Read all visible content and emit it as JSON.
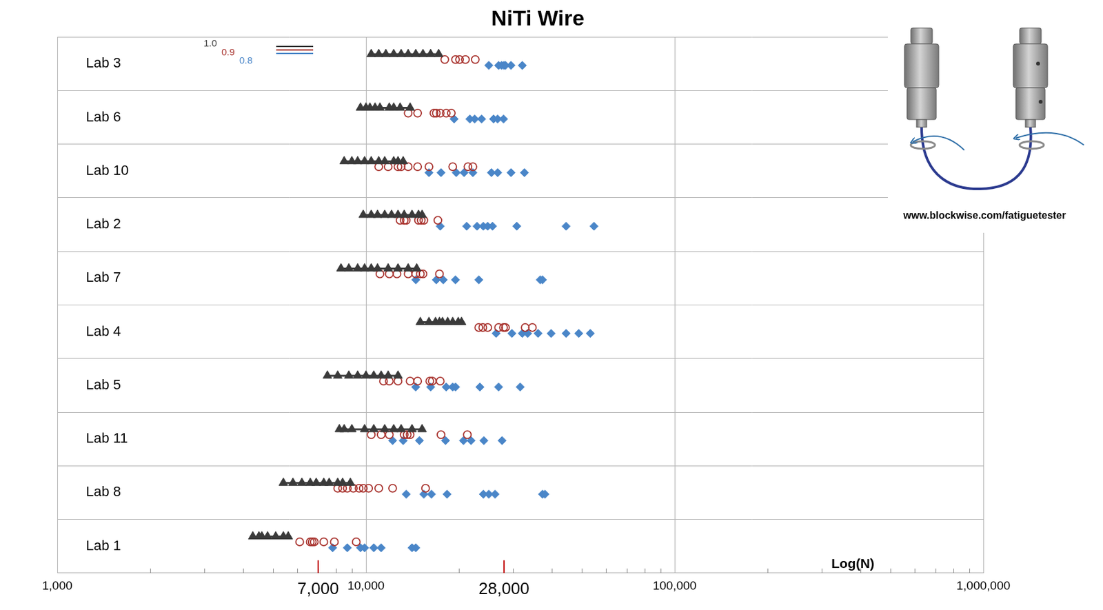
{
  "chart_data": {
    "type": "scatter",
    "title": "NiTi Wire",
    "xlabel": "Log(N)",
    "orientation": "horizontal",
    "log": "x",
    "grid": true,
    "legend": "upper left",
    "categories": [
      "Lab 3",
      "Lab 6",
      "Lab 10",
      "Lab 2",
      "Lab 7",
      "Lab 4",
      "Lab 5",
      "Lab 11",
      "Lab 8",
      "Lab 1"
    ],
    "xlim": [
      1000,
      1000000
    ],
    "xticks": [
      {
        "value": 1000,
        "label": "1,000"
      },
      {
        "value": 7000,
        "label": "7,000"
      },
      {
        "value": 10000,
        "label": "10,000"
      },
      {
        "value": 28000,
        "label": "28,000"
      },
      {
        "value": 100000,
        "label": "100,000"
      },
      {
        "value": 1000000,
        "label": "1,000,000"
      }
    ],
    "series": [
      {
        "name": "1.0",
        "color": "#3a3a3a",
        "marker": "triangle",
        "line_style": "solid",
        "values": [
          [
            10400,
            11000,
            11600,
            12300,
            13000,
            13700,
            14500,
            15300,
            16200,
            17200
          ],
          [
            9600,
            10000,
            10300,
            10700,
            11100,
            11900,
            12300,
            12900,
            13900
          ],
          [
            8500,
            9000,
            9400,
            9900,
            10400,
            11000,
            11500,
            12300,
            12700,
            13200
          ],
          [
            9800,
            10400,
            10900,
            11500,
            12100,
            12700,
            13300,
            14100,
            14800,
            15200
          ],
          [
            8300,
            8800,
            9400,
            9900,
            10400,
            10900,
            11800,
            12700,
            13700,
            14600
          ],
          [
            15000,
            16000,
            16800,
            17300,
            17700,
            18400,
            19100,
            19900,
            20400
          ],
          [
            7500,
            8100,
            8800,
            9400,
            10000,
            10600,
            11200,
            11800,
            12700
          ],
          [
            8200,
            8500,
            9000,
            9900,
            10600,
            11500,
            12300,
            13000,
            14100,
            15200
          ],
          [
            5400,
            5800,
            6200,
            6600,
            6900,
            7300,
            7600,
            8100,
            8400,
            8900
          ],
          [
            4300,
            4500,
            4600,
            4800,
            5100,
            5400,
            5600
          ]
        ]
      },
      {
        "name": "0.9",
        "color": "#a8322d",
        "marker": "open_circle",
        "line_style": "none",
        "values": [
          [
            18000,
            19500,
            20100,
            21000,
            22600
          ],
          [
            13700,
            14700,
            16600,
            16900,
            17400,
            18200,
            18900
          ],
          [
            11000,
            11800,
            12700,
            13000,
            13700,
            14700,
            16000,
            19100,
            21400,
            22200
          ],
          [
            12900,
            13300,
            13500,
            14800,
            15100,
            15400,
            17100
          ],
          [
            11100,
            11900,
            12600,
            13700,
            14500,
            15000,
            15300,
            17300
          ],
          [
            23200,
            23900,
            24800,
            26900,
            27900,
            28300,
            32800,
            34600
          ],
          [
            11400,
            11900,
            12700,
            13900,
            14700,
            16100,
            16400,
            17400
          ],
          [
            10400,
            11200,
            11900,
            13300,
            13600,
            13900,
            17500,
            21300
          ],
          [
            8100,
            8400,
            8700,
            9100,
            9500,
            9800,
            10200,
            11000,
            12200,
            15600
          ],
          [
            6100,
            6600,
            6700,
            6800,
            7300,
            7900,
            9300
          ]
        ]
      },
      {
        "name": "0.8",
        "color": "#4a86c8",
        "marker": "diamond",
        "line_style": "none",
        "values": [
          [
            25000,
            26900,
            27500,
            28000,
            28300,
            29500,
            32100
          ],
          [
            19300,
            21700,
            22500,
            23700,
            25900,
            26700,
            27900
          ],
          [
            16000,
            17500,
            19600,
            20800,
            22200,
            25500,
            26700,
            29500,
            32600
          ],
          [
            17400,
            21200,
            22900,
            24000,
            24800,
            25700,
            30800,
            44500,
            54800
          ],
          [
            14500,
            16900,
            17800,
            19500,
            23200,
            36700,
            37300
          ],
          [
            26400,
            29700,
            32100,
            33400,
            36100,
            39800,
            44500,
            48900,
            53300
          ],
          [
            14500,
            16200,
            18200,
            19100,
            19500,
            23400,
            26900,
            31600
          ],
          [
            12200,
            13200,
            14900,
            18100,
            20700,
            21900,
            24100,
            27600
          ],
          [
            13500,
            15400,
            16300,
            18300,
            24000,
            25000,
            26200,
            37300,
            38000
          ],
          [
            7800,
            8700,
            9600,
            9900,
            10600,
            11200,
            14100,
            14500
          ]
        ]
      }
    ],
    "annotations": [
      {
        "text": "www.blockwise.com/fatiguetester"
      }
    ]
  }
}
